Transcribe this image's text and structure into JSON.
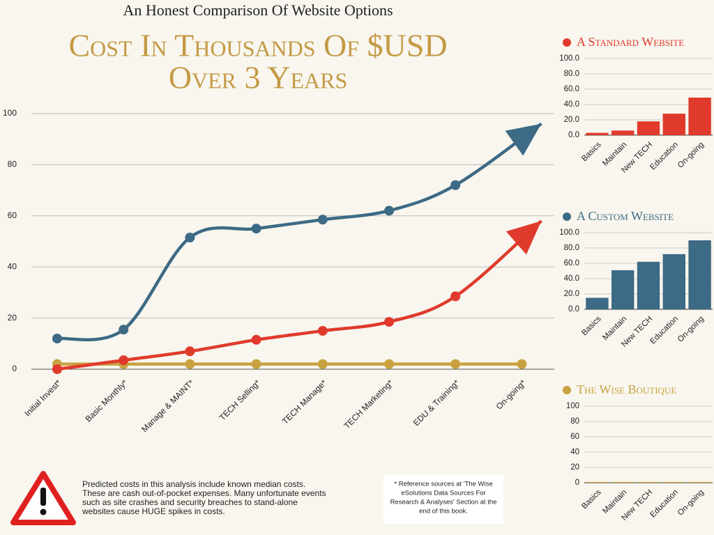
{
  "chart_data": [
    {
      "type": "line",
      "subtitle": "An Honest Comparison Of Website Options",
      "title": [
        "Cost In Thousands Of $USD",
        "Over 3 Years"
      ],
      "categories": [
        "Initial Invest*",
        "Basic Monthly*",
        "Manage & MAINT*",
        "TECH Selling*",
        "TECH Manage*",
        "TECH Marketing*",
        "EDU & Training*",
        "On-going*"
      ],
      "ylim": [
        0,
        100
      ],
      "yticks": [
        0,
        20,
        40,
        60,
        80,
        100
      ],
      "grid": true,
      "smooth": true,
      "series": [
        {
          "color": "#3d6a85",
          "marker_end": "arrow",
          "values": [
            12,
            15.5,
            51.5,
            55,
            58.5,
            62,
            72,
            96
          ]
        },
        {
          "color": "#e03a2c",
          "marker_end": "arrow",
          "values": [
            0,
            3.5,
            7,
            11.5,
            15,
            18.5,
            28.5,
            58
          ]
        },
        {
          "color": "#c9a240",
          "marker_end": "dot",
          "values": [
            2,
            2,
            2,
            2,
            2,
            2,
            2,
            2
          ]
        }
      ]
    },
    {
      "type": "bar",
      "title": "A Standard Website",
      "color": "#e03a2c",
      "categories": [
        "Basics",
        "Maintain",
        "New TECH",
        "Education",
        "On-going"
      ],
      "values": [
        3,
        6,
        18,
        28,
        49
      ],
      "ylim": [
        0,
        100
      ],
      "yticks": [
        {
          "value": 0,
          "label": "0.0"
        },
        {
          "value": 20,
          "label": "20.0"
        },
        {
          "value": 40,
          "label": "40.0"
        },
        {
          "value": 60,
          "label": "60.0"
        },
        {
          "value": 80,
          "label": "80.0"
        },
        {
          "value": 100,
          "label": "100.0"
        }
      ],
      "grid": true
    },
    {
      "type": "bar",
      "title": "A Custom Website",
      "color": "#3d6a85",
      "categories": [
        "Basics",
        "Maintain",
        "New TECH",
        "Education",
        "On-going"
      ],
      "values": [
        15,
        51,
        62,
        72,
        90
      ],
      "ylim": [
        0,
        100
      ],
      "yticks": [
        {
          "value": 0,
          "label": "0.0"
        },
        {
          "value": 20,
          "label": "20.0"
        },
        {
          "value": 40,
          "label": "40.0"
        },
        {
          "value": 60,
          "label": "60.0"
        },
        {
          "value": 80,
          "label": "80.0"
        },
        {
          "value": 100,
          "label": "100.0"
        }
      ],
      "grid": true
    },
    {
      "type": "bar",
      "title": "The Wise Boutique",
      "color": "#c9a240",
      "categories": [
        "Basics",
        "Maintain",
        "New TECH",
        "Education",
        "On-going"
      ],
      "values": [
        1,
        1,
        1,
        1,
        1
      ],
      "ylim": [
        0,
        100
      ],
      "yticks": [
        0,
        20,
        40,
        60,
        80,
        100
      ],
      "grid": true
    }
  ],
  "notes": {
    "warning": [
      "Predicted costs in this analysis include known median costs.",
      "These are cash out-of-pocket expenses. Many unfortunate events",
      "such as site crashes and security breaches to stand-alone",
      "websites cause HUGE spikes in costs."
    ],
    "reference": [
      "* Reference sources at 'The Wise",
      "eSolutions Data Sources For",
      "Research & Analyses' Section at the",
      "end of this book."
    ]
  }
}
